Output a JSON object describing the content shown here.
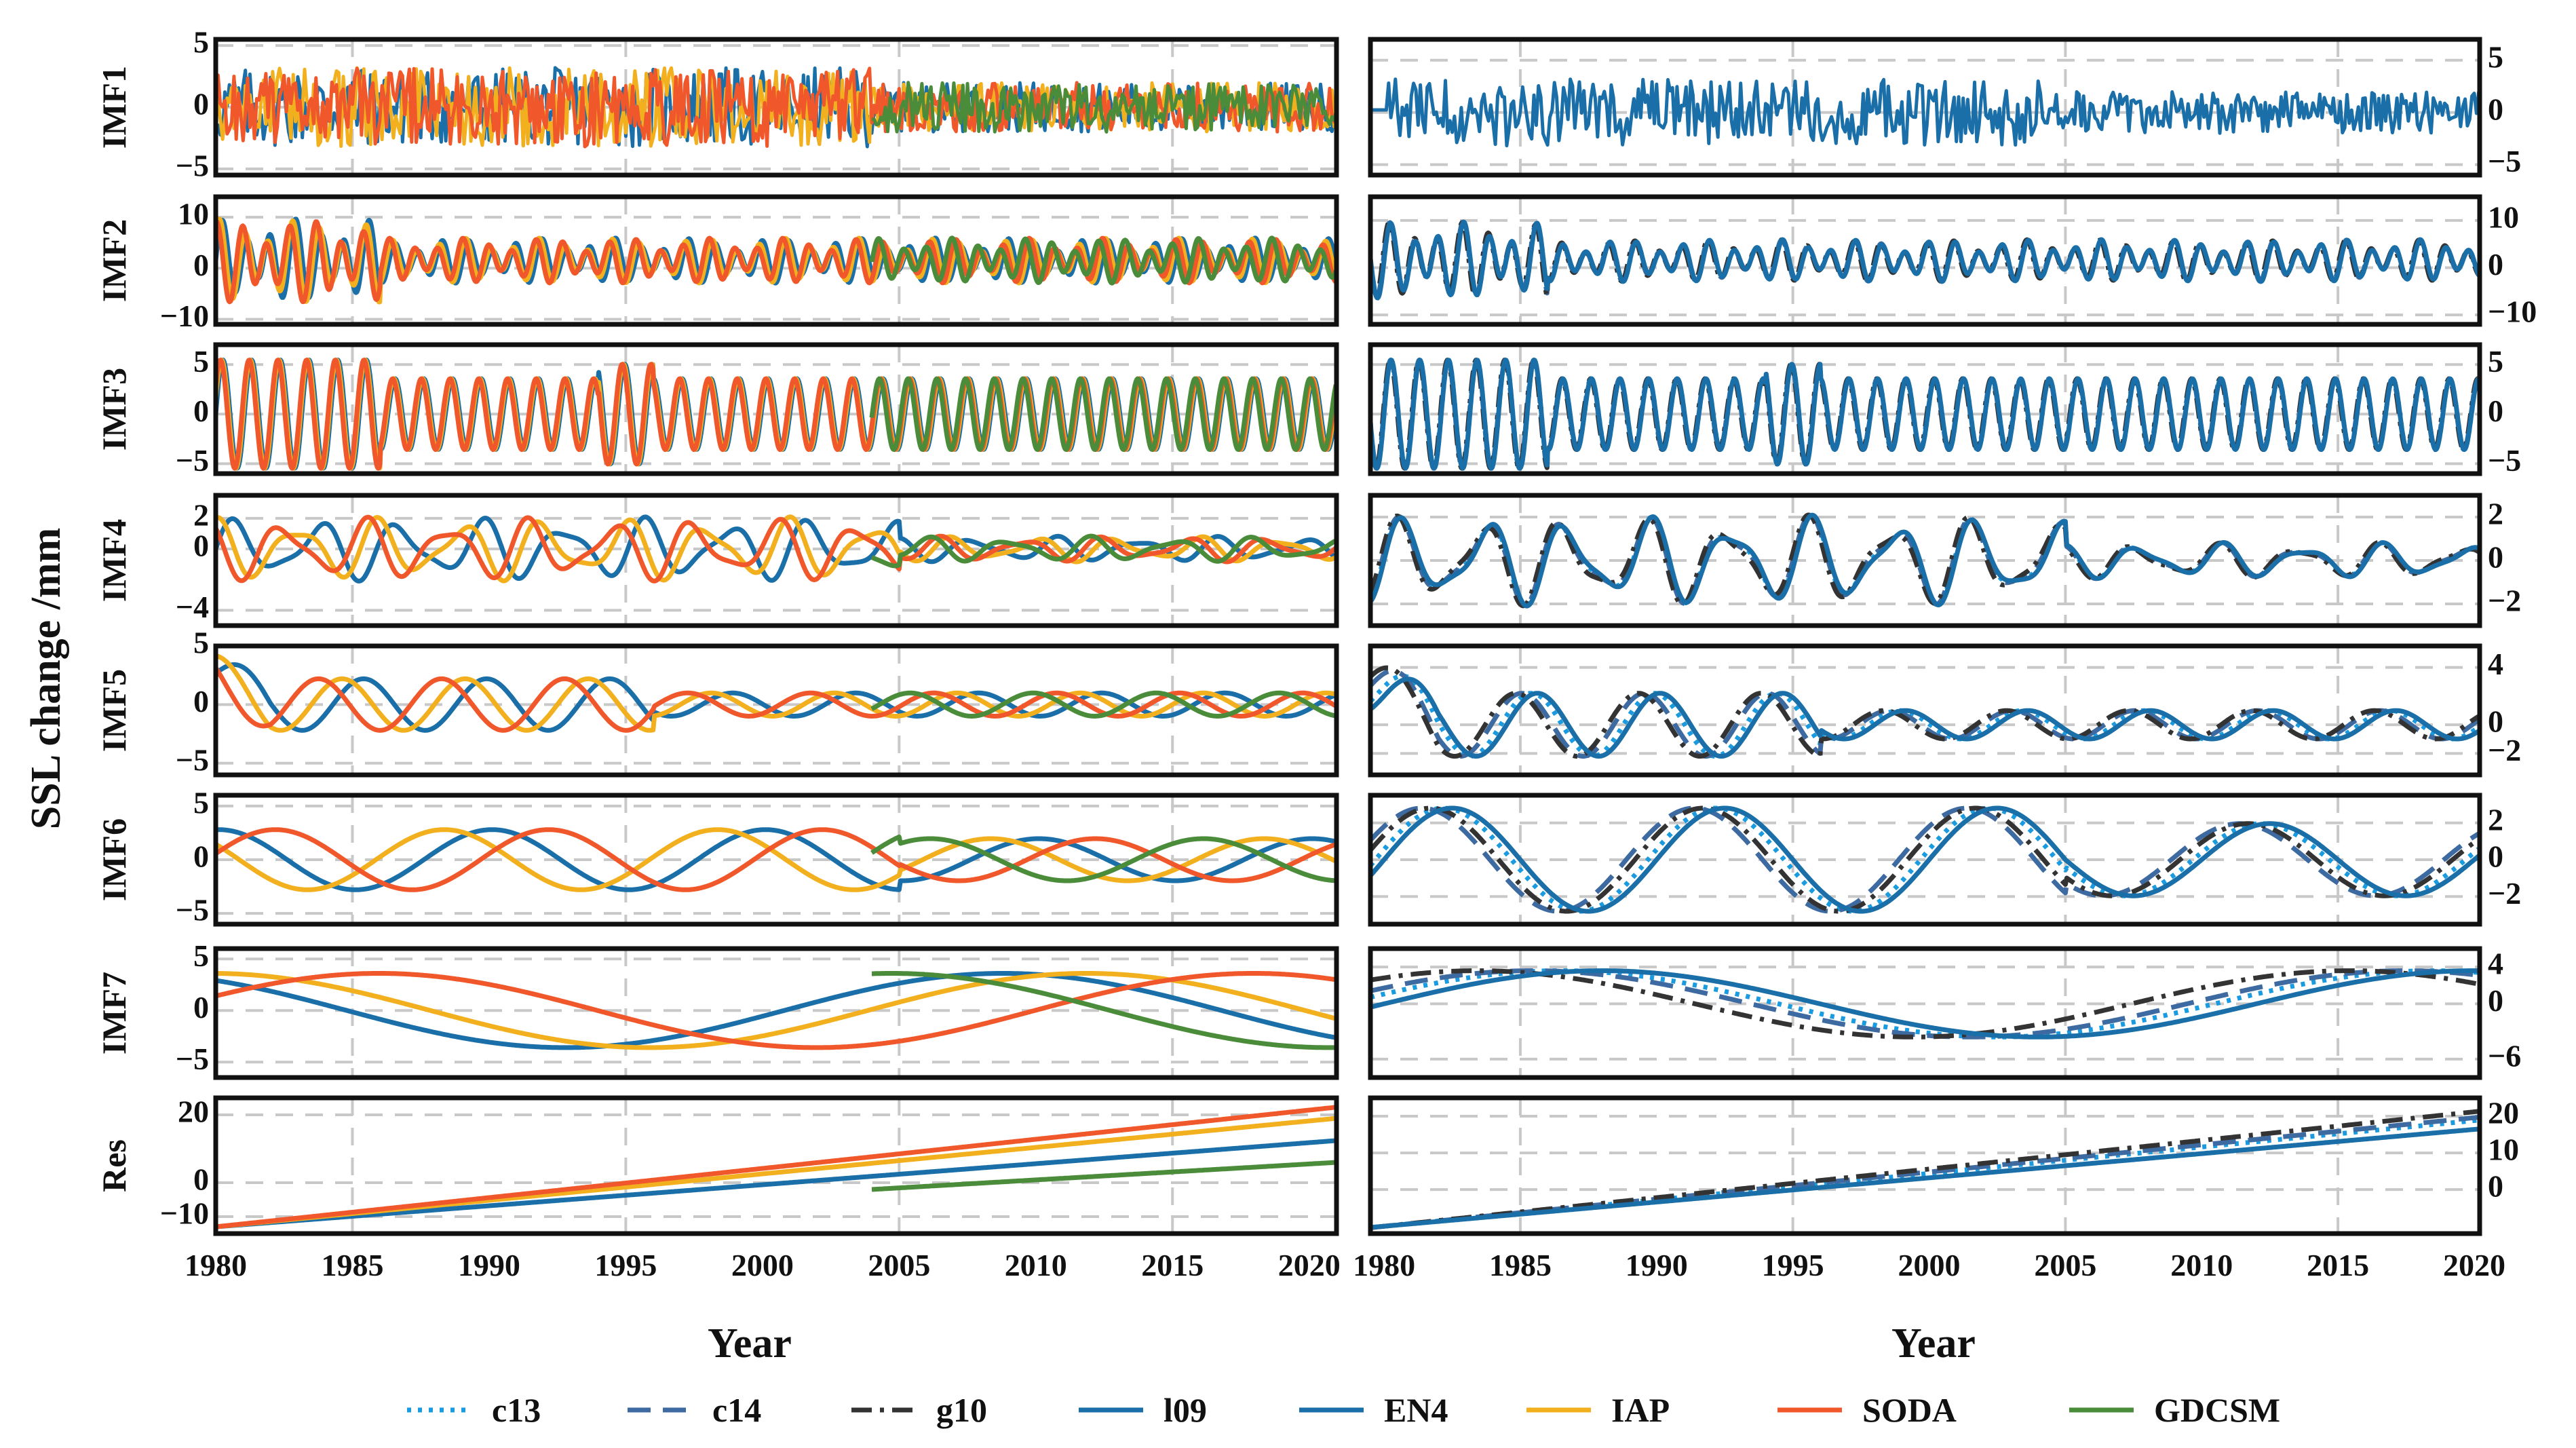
{
  "chart_data": {
    "type": "line",
    "ylabel": "SSL change /mm",
    "xlabel_left": "Year",
    "xlabel_right": "Year",
    "left": {
      "xlim": [
        1980,
        2021
      ],
      "xticks": [
        1980,
        1985,
        1990,
        1995,
        2000,
        2005,
        2010,
        2015,
        2020
      ],
      "series": [
        "EN4",
        "IAP",
        "SODA",
        "GDCSM"
      ]
    },
    "right": {
      "xlim": [
        1979.5,
        2020.2
      ],
      "xticks": [
        1980,
        1985,
        1990,
        1995,
        2000,
        2005,
        2010,
        2015,
        2020
      ],
      "series": [
        "c13",
        "c14",
        "g10",
        "l09"
      ]
    },
    "panels": [
      {
        "name": "IMF1",
        "left_ylim": [
          -5.5,
          5.5
        ],
        "left_yticks": [
          -5,
          0,
          5
        ],
        "right_ylim": [
          -6,
          7
        ],
        "right_yticks": [
          -5,
          0,
          5
        ]
      },
      {
        "name": "IMF2",
        "left_ylim": [
          -11,
          14
        ],
        "left_yticks": [
          -10,
          0,
          10
        ],
        "right_ylim": [
          -12,
          15
        ],
        "right_yticks": [
          -10,
          0,
          10
        ]
      },
      {
        "name": "IMF3",
        "left_ylim": [
          -6,
          7
        ],
        "left_yticks": [
          -5,
          0,
          5
        ],
        "right_ylim": [
          -6,
          7
        ],
        "right_yticks": [
          -5,
          0,
          5
        ]
      },
      {
        "name": "IMF4",
        "left_ylim": [
          -5,
          3.5
        ],
        "left_yticks": [
          -4,
          0,
          2
        ],
        "right_ylim": [
          -3,
          3
        ],
        "right_yticks": [
          -2,
          0,
          2
        ]
      },
      {
        "name": "IMF5",
        "left_ylim": [
          -6,
          5
        ],
        "left_yticks": [
          -5,
          0,
          5
        ],
        "right_ylim": [
          -3.5,
          5.5
        ],
        "right_yticks": [
          -2,
          0,
          4
        ]
      },
      {
        "name": "IMF6",
        "left_ylim": [
          -6,
          6
        ],
        "left_yticks": [
          -5,
          0,
          5
        ],
        "right_ylim": [
          -3.5,
          3.5
        ],
        "right_yticks": [
          -2,
          0,
          2
        ]
      },
      {
        "name": "IMF7",
        "left_ylim": [
          -6.5,
          6
        ],
        "left_yticks": [
          -5,
          0,
          5
        ],
        "right_ylim": [
          -8,
          6
        ],
        "right_yticks": [
          -6,
          0,
          4
        ]
      },
      {
        "name": "Res",
        "left_ylim": [
          -15,
          25
        ],
        "left_yticks": [
          -10,
          0,
          20
        ],
        "right_ylim": [
          -12,
          25
        ],
        "right_yticks": [
          0,
          10,
          20
        ]
      }
    ],
    "legend": [
      {
        "name": "c13",
        "color": "#1a9be0",
        "dash": "dotted"
      },
      {
        "name": "c14",
        "color": "#3d6aa0",
        "dash": "dashed"
      },
      {
        "name": "g10",
        "color": "#333333",
        "dash": "dashdot"
      },
      {
        "name": "l09",
        "color": "#1a6fa8",
        "dash": "solid"
      },
      {
        "name": "EN4",
        "color": "#1a6fa8",
        "dash": "solid"
      },
      {
        "name": "IAP",
        "color": "#f2b01e",
        "dash": "solid"
      },
      {
        "name": "SODA",
        "color": "#f0582c",
        "dash": "solid"
      },
      {
        "name": "GDCSM",
        "color": "#4a8c3a",
        "dash": "solid"
      }
    ]
  }
}
